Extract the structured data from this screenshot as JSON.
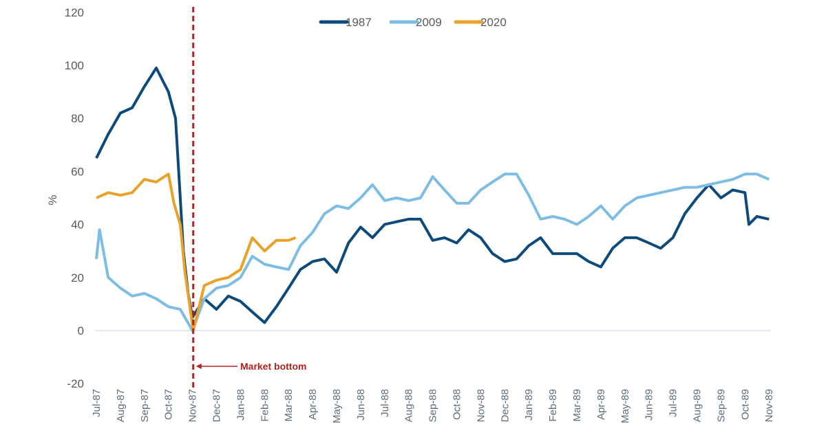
{
  "chart_data": {
    "type": "line",
    "title": "",
    "xlabel": "",
    "ylabel": "%",
    "ylim": [
      -20,
      120
    ],
    "yticks": [
      -20,
      0,
      20,
      40,
      60,
      80,
      100,
      120
    ],
    "xlim": [
      "1987-07-01",
      "1989-11-01"
    ],
    "xtick_labels": [
      "Jul-87",
      "Aug-87",
      "Sep-87",
      "Oct-87",
      "Nov-87",
      "Dec-87",
      "Jan-88",
      "Feb-88",
      "Mar-88",
      "Apr-88",
      "May-88",
      "Jun-88",
      "Jul-88",
      "Aug-88",
      "Sep-88",
      "Oct-88",
      "Nov-88",
      "Dec-88",
      "Jan-89",
      "Feb-89",
      "Mar-89",
      "Apr-89",
      "May-89",
      "Jun-89",
      "Jul-89",
      "Aug-89",
      "Sep-89",
      "Oct-89",
      "Nov-89"
    ],
    "grid": false,
    "legend": {
      "position": "top-center"
    },
    "annotation": {
      "label": "Market bottom",
      "date": "1987-11-02",
      "color": "#b22222"
    },
    "series": [
      {
        "name": "1987",
        "color": "#0d4a7c",
        "points": [
          [
            "1987-07-01",
            65
          ],
          [
            "1987-07-16",
            74
          ],
          [
            "1987-08-01",
            82
          ],
          [
            "1987-08-16",
            84
          ],
          [
            "1987-09-01",
            92
          ],
          [
            "1987-09-16",
            99
          ],
          [
            "1987-10-01",
            90
          ],
          [
            "1987-10-10",
            80
          ],
          [
            "1987-10-16",
            50
          ],
          [
            "1987-10-20",
            30
          ],
          [
            "1987-10-26",
            14
          ],
          [
            "1987-11-01",
            5
          ],
          [
            "1987-11-16",
            12
          ],
          [
            "1987-12-01",
            8
          ],
          [
            "1987-12-16",
            13
          ],
          [
            "1988-01-01",
            11
          ],
          [
            "1988-01-16",
            7
          ],
          [
            "1988-02-01",
            3
          ],
          [
            "1988-02-16",
            9
          ],
          [
            "1988-03-01",
            16
          ],
          [
            "1988-03-16",
            23
          ],
          [
            "1988-04-01",
            26
          ],
          [
            "1988-04-16",
            27
          ],
          [
            "1988-05-01",
            22
          ],
          [
            "1988-05-16",
            33
          ],
          [
            "1988-06-01",
            39
          ],
          [
            "1988-06-16",
            35
          ],
          [
            "1988-07-01",
            40
          ],
          [
            "1988-07-16",
            41
          ],
          [
            "1988-08-01",
            42
          ],
          [
            "1988-08-16",
            42
          ],
          [
            "1988-09-01",
            34
          ],
          [
            "1988-09-16",
            35
          ],
          [
            "1988-10-01",
            33
          ],
          [
            "1988-10-16",
            38
          ],
          [
            "1988-11-01",
            35
          ],
          [
            "1988-11-16",
            29
          ],
          [
            "1988-12-01",
            26
          ],
          [
            "1988-12-16",
            27
          ],
          [
            "1989-01-01",
            32
          ],
          [
            "1989-01-16",
            35
          ],
          [
            "1989-02-01",
            29
          ],
          [
            "1989-02-16",
            29
          ],
          [
            "1989-03-01",
            29
          ],
          [
            "1989-03-16",
            26
          ],
          [
            "1989-04-01",
            24
          ],
          [
            "1989-04-16",
            31
          ],
          [
            "1989-05-01",
            35
          ],
          [
            "1989-05-16",
            35
          ],
          [
            "1989-06-01",
            33
          ],
          [
            "1989-06-16",
            31
          ],
          [
            "1989-07-01",
            35
          ],
          [
            "1989-07-16",
            44
          ],
          [
            "1989-08-01",
            50
          ],
          [
            "1989-08-16",
            55
          ],
          [
            "1989-09-01",
            50
          ],
          [
            "1989-09-16",
            53
          ],
          [
            "1989-10-01",
            52
          ],
          [
            "1989-10-06",
            40
          ],
          [
            "1989-10-16",
            43
          ],
          [
            "1989-11-01",
            42
          ]
        ]
      },
      {
        "name": "2009",
        "color": "#7dbde3",
        "points": [
          [
            "1987-07-01",
            27
          ],
          [
            "1987-07-05",
            38
          ],
          [
            "1987-07-16",
            20
          ],
          [
            "1987-08-01",
            16
          ],
          [
            "1987-08-16",
            13
          ],
          [
            "1987-09-01",
            14
          ],
          [
            "1987-09-16",
            12
          ],
          [
            "1987-10-01",
            9
          ],
          [
            "1987-10-16",
            8
          ],
          [
            "1987-11-01",
            0
          ],
          [
            "1987-11-16",
            12
          ],
          [
            "1987-12-01",
            16
          ],
          [
            "1987-12-16",
            17
          ],
          [
            "1988-01-01",
            20
          ],
          [
            "1988-01-16",
            28
          ],
          [
            "1988-02-01",
            25
          ],
          [
            "1988-02-16",
            24
          ],
          [
            "1988-03-01",
            23
          ],
          [
            "1988-03-16",
            32
          ],
          [
            "1988-04-01",
            37
          ],
          [
            "1988-04-16",
            44
          ],
          [
            "1988-05-01",
            47
          ],
          [
            "1988-05-16",
            46
          ],
          [
            "1988-06-01",
            50
          ],
          [
            "1988-06-16",
            55
          ],
          [
            "1988-07-01",
            49
          ],
          [
            "1988-07-16",
            50
          ],
          [
            "1988-08-01",
            49
          ],
          [
            "1988-08-16",
            50
          ],
          [
            "1988-09-01",
            58
          ],
          [
            "1988-09-16",
            53
          ],
          [
            "1988-10-01",
            48
          ],
          [
            "1988-10-16",
            48
          ],
          [
            "1988-11-01",
            53
          ],
          [
            "1988-11-16",
            56
          ],
          [
            "1988-12-01",
            59
          ],
          [
            "1988-12-16",
            59
          ],
          [
            "1989-01-01",
            51
          ],
          [
            "1989-01-16",
            42
          ],
          [
            "1989-02-01",
            43
          ],
          [
            "1989-02-16",
            42
          ],
          [
            "1989-03-01",
            40
          ],
          [
            "1989-03-16",
            43
          ],
          [
            "1989-04-01",
            47
          ],
          [
            "1989-04-16",
            42
          ],
          [
            "1989-05-01",
            47
          ],
          [
            "1989-05-16",
            50
          ],
          [
            "1989-06-01",
            51
          ],
          [
            "1989-06-16",
            52
          ],
          [
            "1989-07-01",
            53
          ],
          [
            "1989-07-16",
            54
          ],
          [
            "1989-08-01",
            54
          ],
          [
            "1989-08-16",
            55
          ],
          [
            "1989-09-01",
            56
          ],
          [
            "1989-09-16",
            57
          ],
          [
            "1989-10-01",
            59
          ],
          [
            "1989-10-16",
            59
          ],
          [
            "1989-11-01",
            57
          ]
        ]
      },
      {
        "name": "2020",
        "color": "#e8a22a",
        "points": [
          [
            "1987-07-01",
            50
          ],
          [
            "1987-07-16",
            52
          ],
          [
            "1987-08-01",
            51
          ],
          [
            "1987-08-16",
            52
          ],
          [
            "1987-09-01",
            57
          ],
          [
            "1987-09-16",
            56
          ],
          [
            "1987-10-01",
            59
          ],
          [
            "1987-10-08",
            48
          ],
          [
            "1987-10-16",
            40
          ],
          [
            "1987-10-22",
            22
          ],
          [
            "1987-11-02",
            0
          ],
          [
            "1987-11-16",
            17
          ],
          [
            "1987-12-01",
            19
          ],
          [
            "1987-12-16",
            20
          ],
          [
            "1988-01-01",
            23
          ],
          [
            "1988-01-16",
            35
          ],
          [
            "1988-02-01",
            30
          ],
          [
            "1988-02-16",
            34
          ],
          [
            "1988-03-01",
            34
          ],
          [
            "1988-03-10",
            35
          ]
        ]
      }
    ]
  }
}
